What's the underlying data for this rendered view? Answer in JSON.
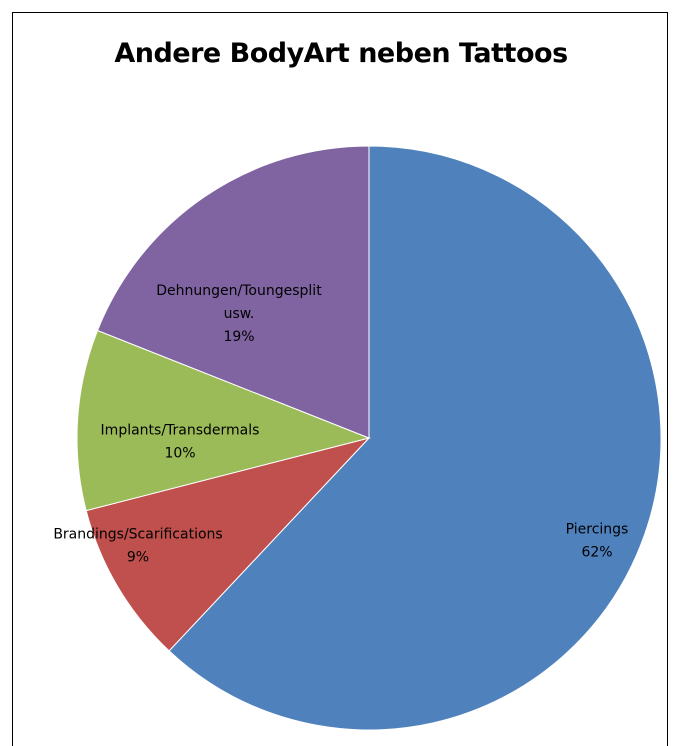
{
  "chart_data": {
    "type": "pie",
    "title": "Andere BodyArt neben Tattoos",
    "start_angle_deg": 0,
    "direction": "clockwise",
    "slices": [
      {
        "label_lines": [
          "Piercings"
        ],
        "value": 62,
        "value_label": "62%",
        "color": "#4F81BD"
      },
      {
        "label_lines": [
          "Brandings/Scarifications"
        ],
        "value": 9,
        "value_label": "9%",
        "color": "#C0504D"
      },
      {
        "label_lines": [
          "Implants/Transdermals"
        ],
        "value": 10,
        "value_label": "10%",
        "color": "#9BBB59"
      },
      {
        "label_lines": [
          "Dehnungen/Toungesplit",
          "usw."
        ],
        "value": 19,
        "value_label": "19%",
        "color": "#8064A2"
      }
    ]
  }
}
